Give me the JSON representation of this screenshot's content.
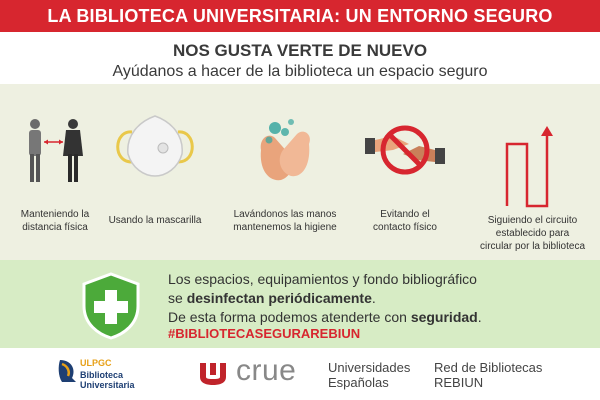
{
  "banner": {
    "title": "LA BIBLIOTECA UNIVERSITARIA: UN ENTORNO SEGURO"
  },
  "header": {
    "headline": "NOS GUSTA VERTE DE NUEVO",
    "subline": "Ayúdanos a hacer de la biblioteca un espacio seguro"
  },
  "measures": [
    {
      "icon": "social-distance-icon",
      "line1": "Manteniendo la",
      "line2": "distancia física"
    },
    {
      "icon": "face-mask-icon",
      "line1": "Usando la mascarilla"
    },
    {
      "icon": "hand-washing-icon",
      "line1": "Lavándonos las manos",
      "line2": "mantenemos la higiene"
    },
    {
      "icon": "no-contact-icon",
      "line1": "Evitando el",
      "line2": "contacto físico"
    },
    {
      "icon": "circuit-arrow-icon",
      "line1": "Siguiendo el circuito",
      "line2": "establecido para",
      "line3": "circular por la biblioteca"
    }
  ],
  "notice": {
    "icon": "shield-cross-icon",
    "line1": "Los espacios, equipamientos y fondo bibliográfico",
    "line2_pre": "se ",
    "line2_bold": "desinfectan periódicamente",
    "line2_post": ".",
    "line3_pre": "De esta forma podemos atenderte con ",
    "line3_bold": "seguridad",
    "line3_post": ".",
    "hashtag": "#BIBLIOTECASEGURAREBIUN"
  },
  "footer": {
    "ulpgc": {
      "name": "ULPGC",
      "line1": "Biblioteca",
      "line2": "Universitaria"
    },
    "crue": {
      "word": "crue",
      "line1": "Universidades",
      "line2": "Españolas"
    },
    "rebiun": {
      "line1": "Red de Bibliotecas",
      "line2": "REBIUN"
    }
  },
  "colors": {
    "accent_red": "#d7262f",
    "green_band": "#d7ecc5",
    "beige_band": "#eef0e1",
    "shield_green": "#4caa3a"
  }
}
